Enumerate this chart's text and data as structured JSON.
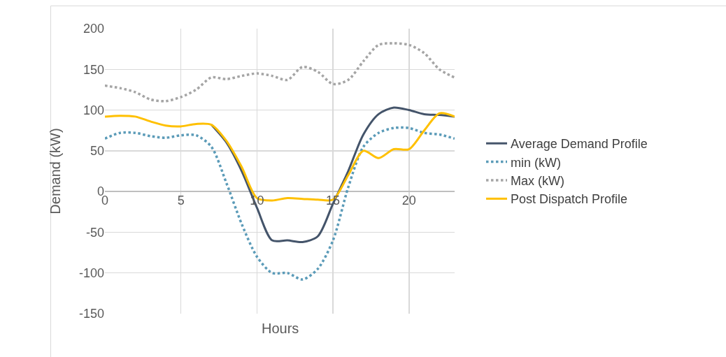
{
  "chart_data": {
    "type": "line",
    "xlabel": "Hours",
    "ylabel": "Demand (kW)",
    "x": [
      0,
      1,
      2,
      3,
      4,
      5,
      6,
      7,
      8,
      9,
      10,
      11,
      12,
      13,
      14,
      15,
      16,
      17,
      18,
      19,
      20,
      21,
      22,
      23
    ],
    "xlim": [
      0,
      23
    ],
    "xticks": [
      0,
      5,
      10,
      15,
      20
    ],
    "ylim": [
      -150,
      200
    ],
    "yticks": [
      -150,
      -100,
      -50,
      0,
      50,
      100,
      150,
      200
    ],
    "grid": true,
    "legend": "right",
    "series": [
      {
        "name": "Average Demand Profile",
        "color": "#44546a",
        "line_style": "solid",
        "values": [
          null,
          null,
          null,
          null,
          null,
          null,
          null,
          82,
          60,
          25,
          -20,
          -60,
          -60,
          -62,
          -55,
          -15,
          25,
          70,
          95,
          103,
          100,
          95,
          94,
          92
        ]
      },
      {
        "name": "min (kW)",
        "color": "#5b9bb8",
        "line_style": "dotted",
        "values": [
          65,
          72,
          72,
          68,
          66,
          69,
          69,
          55,
          10,
          -40,
          -80,
          -100,
          -100,
          -108,
          -95,
          -60,
          5,
          55,
          72,
          78,
          78,
          72,
          70,
          65
        ]
      },
      {
        "name": "Max (kW)",
        "color": "#a5a5a5",
        "line_style": "dotted",
        "values": [
          130,
          127,
          122,
          113,
          111,
          116,
          125,
          140,
          138,
          142,
          145,
          142,
          137,
          153,
          147,
          132,
          137,
          160,
          180,
          182,
          180,
          170,
          150,
          140
        ]
      },
      {
        "name": "Post Dispatch Profile",
        "color": "#ffc000",
        "line_style": "solid",
        "values": [
          92,
          93,
          92,
          86,
          81,
          80,
          83,
          82,
          62,
          30,
          -8,
          -11,
          -8,
          -9,
          -10,
          -10,
          20,
          50,
          41,
          52,
          52,
          75,
          96,
          92
        ]
      }
    ]
  }
}
